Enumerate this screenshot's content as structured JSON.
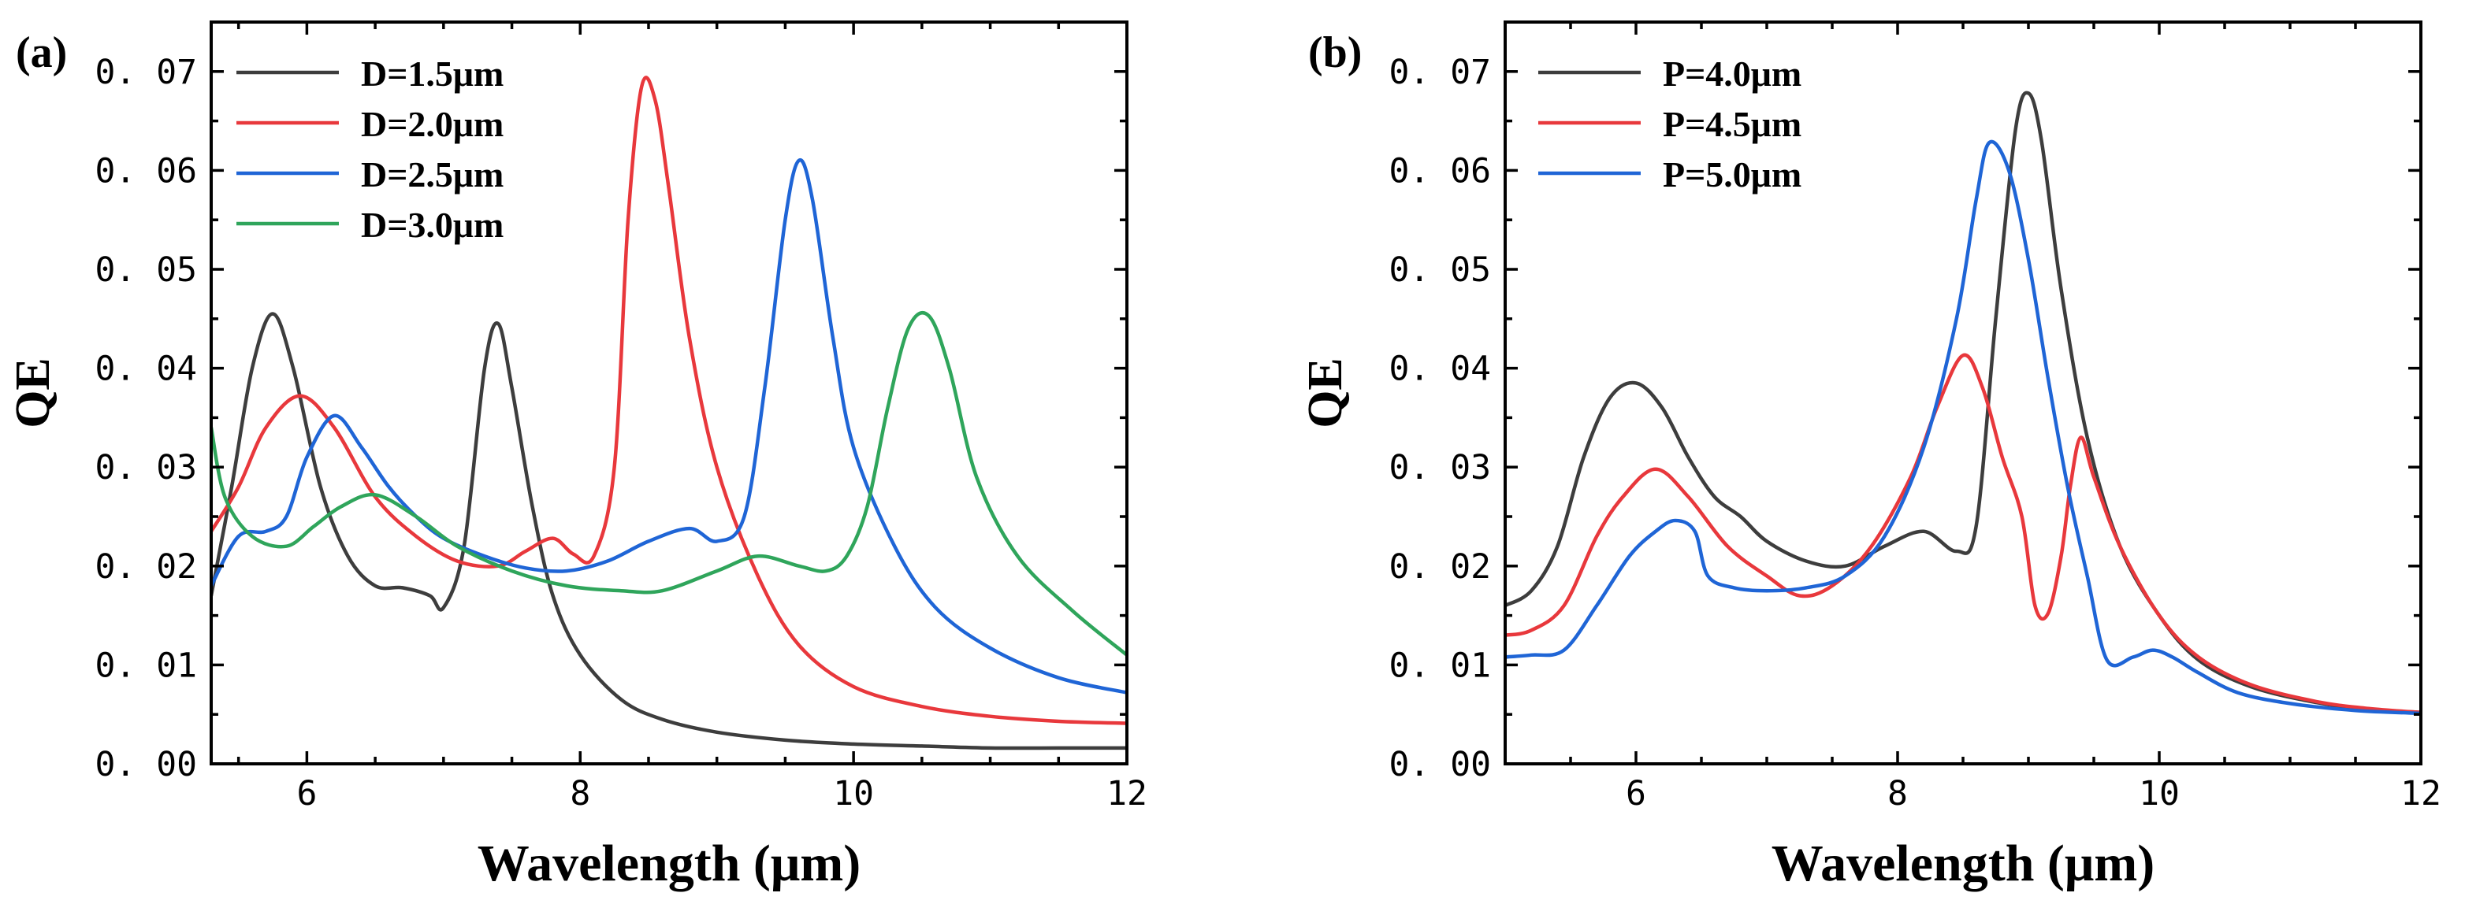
{
  "chart_data": [
    {
      "type": "line",
      "panel_label": "(a)",
      "xlabel": "Wavelength (μm)",
      "ylabel": "QE",
      "xlim": [
        5.3,
        12
      ],
      "ylim": [
        0,
        0.075
      ],
      "x_ticks": [
        6,
        8,
        10,
        12
      ],
      "x_tick_labels": [
        "6",
        "8",
        "10",
        "12"
      ],
      "y_ticks": [
        0,
        0.01,
        0.02,
        0.03,
        0.04,
        0.05,
        0.06,
        0.07
      ],
      "y_tick_labels": [
        "0. 00",
        "0. 01",
        "0. 02",
        "0. 03",
        "0. 04",
        "0. 05",
        "0. 06",
        "0. 07"
      ],
      "legend_position": "top-left",
      "series": [
        {
          "name": "D=1.5μm",
          "color": "#3d3d3d",
          "x": [
            5.3,
            5.45,
            5.6,
            5.75,
            5.9,
            6.1,
            6.3,
            6.5,
            6.7,
            6.9,
            7.0,
            7.15,
            7.3,
            7.4,
            7.5,
            7.65,
            7.8,
            8.0,
            8.3,
            8.6,
            9.0,
            9.5,
            10,
            10.5,
            11,
            11.5,
            12
          ],
          "y": [
            0.017,
            0.028,
            0.04,
            0.0455,
            0.04,
            0.028,
            0.021,
            0.018,
            0.0178,
            0.017,
            0.0158,
            0.022,
            0.04,
            0.0445,
            0.038,
            0.026,
            0.017,
            0.011,
            0.0065,
            0.0045,
            0.0032,
            0.0024,
            0.002,
            0.0018,
            0.0016,
            0.0016,
            0.0016
          ]
        },
        {
          "name": "D=2.0μm",
          "color": "#e8383c",
          "x": [
            5.3,
            5.5,
            5.7,
            5.95,
            6.2,
            6.5,
            6.8,
            7.1,
            7.4,
            7.6,
            7.8,
            7.95,
            8.1,
            8.25,
            8.35,
            8.45,
            8.55,
            8.65,
            8.8,
            9.0,
            9.3,
            9.6,
            10,
            10.5,
            11,
            11.5,
            12
          ],
          "y": [
            0.0235,
            0.028,
            0.034,
            0.0372,
            0.034,
            0.027,
            0.023,
            0.0205,
            0.02,
            0.0215,
            0.0228,
            0.0212,
            0.021,
            0.03,
            0.055,
            0.0685,
            0.067,
            0.058,
            0.043,
            0.03,
            0.019,
            0.012,
            0.0078,
            0.0058,
            0.0048,
            0.0043,
            0.0041
          ]
        },
        {
          "name": "D=2.5μm",
          "color": "#1f65d6",
          "x": [
            5.3,
            5.5,
            5.7,
            5.85,
            6.0,
            6.2,
            6.4,
            6.6,
            6.8,
            7.0,
            7.3,
            7.6,
            7.9,
            8.2,
            8.5,
            8.8,
            9.0,
            9.2,
            9.35,
            9.5,
            9.6,
            9.7,
            9.85,
            10.0,
            10.3,
            10.6,
            11,
            11.5,
            12
          ],
          "y": [
            0.018,
            0.023,
            0.0235,
            0.025,
            0.031,
            0.0352,
            0.032,
            0.028,
            0.025,
            0.0228,
            0.021,
            0.0198,
            0.0195,
            0.0205,
            0.0225,
            0.0238,
            0.0225,
            0.025,
            0.038,
            0.055,
            0.061,
            0.057,
            0.043,
            0.032,
            0.022,
            0.0158,
            0.0117,
            0.0087,
            0.0072
          ]
        },
        {
          "name": "D=3.0μm",
          "color": "#2fa55b",
          "x": [
            5.3,
            5.4,
            5.6,
            5.85,
            6.05,
            6.25,
            6.5,
            6.8,
            7.1,
            7.5,
            7.9,
            8.3,
            8.6,
            9.0,
            9.3,
            9.6,
            9.8,
            9.95,
            10.1,
            10.25,
            10.4,
            10.55,
            10.7,
            10.9,
            11.2,
            11.6,
            12
          ],
          "y": [
            0.034,
            0.027,
            0.023,
            0.022,
            0.024,
            0.026,
            0.0272,
            0.025,
            0.022,
            0.0195,
            0.018,
            0.0175,
            0.0175,
            0.0195,
            0.021,
            0.02,
            0.0195,
            0.021,
            0.026,
            0.036,
            0.044,
            0.0453,
            0.04,
            0.029,
            0.021,
            0.0155,
            0.011
          ]
        }
      ]
    },
    {
      "type": "line",
      "panel_label": "(b)",
      "xlabel": "Wavelength (μm)",
      "ylabel": "QE",
      "xlim": [
        5,
        12
      ],
      "ylim": [
        0,
        0.075
      ],
      "x_ticks": [
        6,
        8,
        10,
        12
      ],
      "x_tick_labels": [
        "6",
        "8",
        "10",
        "12"
      ],
      "y_ticks": [
        0,
        0.01,
        0.02,
        0.03,
        0.04,
        0.05,
        0.06,
        0.07
      ],
      "y_tick_labels": [
        "0. 00",
        "0. 01",
        "0. 02",
        "0. 03",
        "0. 04",
        "0. 05",
        "0. 06",
        "0. 07"
      ],
      "legend_position": "top-left",
      "series": [
        {
          "name": "P=4.0μm",
          "color": "#3d3d3d",
          "x": [
            5.0,
            5.2,
            5.4,
            5.6,
            5.8,
            6.0,
            6.2,
            6.4,
            6.6,
            6.8,
            7.0,
            7.3,
            7.6,
            7.9,
            8.2,
            8.45,
            8.6,
            8.75,
            8.9,
            9.0,
            9.1,
            9.25,
            9.45,
            9.7,
            10.0,
            10.3,
            10.7,
            11.2,
            11.6,
            12.0
          ],
          "y": [
            0.016,
            0.0175,
            0.022,
            0.031,
            0.037,
            0.0385,
            0.036,
            0.031,
            0.027,
            0.025,
            0.0225,
            0.0205,
            0.02,
            0.022,
            0.0235,
            0.0215,
            0.024,
            0.045,
            0.064,
            0.0678,
            0.063,
            0.048,
            0.033,
            0.022,
            0.015,
            0.0105,
            0.0078,
            0.0062,
            0.0055,
            0.0052
          ]
        },
        {
          "name": "P=4.5μm",
          "color": "#e8383c",
          "x": [
            5.0,
            5.2,
            5.45,
            5.7,
            5.9,
            6.15,
            6.4,
            6.7,
            7.0,
            7.25,
            7.5,
            7.8,
            8.1,
            8.3,
            8.5,
            8.65,
            8.8,
            8.95,
            9.05,
            9.15,
            9.25,
            9.32,
            9.4,
            9.5,
            9.7,
            10.0,
            10.3,
            10.7,
            11.2,
            11.6,
            12.0
          ],
          "y": [
            0.013,
            0.0135,
            0.016,
            0.023,
            0.027,
            0.0298,
            0.027,
            0.022,
            0.019,
            0.017,
            0.018,
            0.022,
            0.029,
            0.036,
            0.0413,
            0.038,
            0.031,
            0.025,
            0.016,
            0.0152,
            0.021,
            0.028,
            0.033,
            0.029,
            0.022,
            0.015,
            0.0108,
            0.008,
            0.0063,
            0.0056,
            0.0052
          ]
        },
        {
          "name": "P=5.0μm",
          "color": "#1f65d6",
          "x": [
            5.0,
            5.2,
            5.45,
            5.7,
            5.95,
            6.15,
            6.3,
            6.45,
            6.55,
            6.75,
            7.0,
            7.3,
            7.6,
            7.9,
            8.2,
            8.45,
            8.6,
            8.7,
            8.85,
            9.0,
            9.15,
            9.3,
            9.45,
            9.6,
            9.8,
            9.95,
            10.1,
            10.3,
            10.6,
            11.0,
            11.5,
            12.0
          ],
          "y": [
            0.0108,
            0.011,
            0.0115,
            0.016,
            0.021,
            0.0235,
            0.0246,
            0.0235,
            0.019,
            0.0178,
            0.0175,
            0.0178,
            0.019,
            0.023,
            0.032,
            0.045,
            0.057,
            0.0628,
            0.06,
            0.051,
            0.039,
            0.028,
            0.019,
            0.0105,
            0.0108,
            0.0115,
            0.0108,
            0.0092,
            0.0072,
            0.0061,
            0.0054,
            0.0051
          ]
        }
      ]
    }
  ]
}
